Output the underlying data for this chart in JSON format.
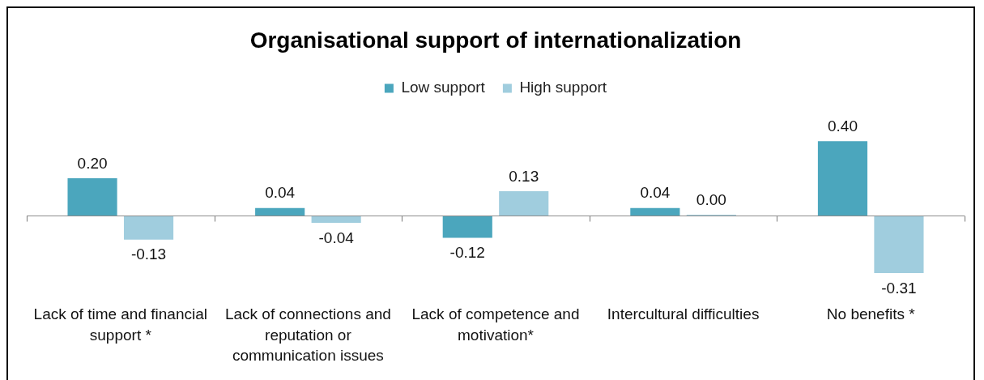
{
  "chart_data": {
    "type": "bar",
    "title": "Organisational support of internationalization",
    "categories": [
      "Lack of time and financial support *",
      "Lack of connections and reputation or communication issues",
      "Lack of competence and motivation*",
      "Intercultural difficulties",
      "No benefits *"
    ],
    "series": [
      {
        "name": "Low support",
        "color": "#4ba6bd",
        "values": [
          0.2,
          0.04,
          -0.12,
          0.04,
          0.4
        ],
        "value_labels": [
          "0.20",
          "0.04",
          "-0.12",
          "0.04",
          "0.40"
        ]
      },
      {
        "name": "High support",
        "color": "#a0cdde",
        "values": [
          -0.13,
          -0.04,
          0.13,
          0.0,
          -0.31
        ],
        "value_labels": [
          "-0.13",
          "-0.04",
          "0.13",
          "0.00",
          "-0.31"
        ]
      }
    ],
    "legend": "top",
    "grid": false
  }
}
